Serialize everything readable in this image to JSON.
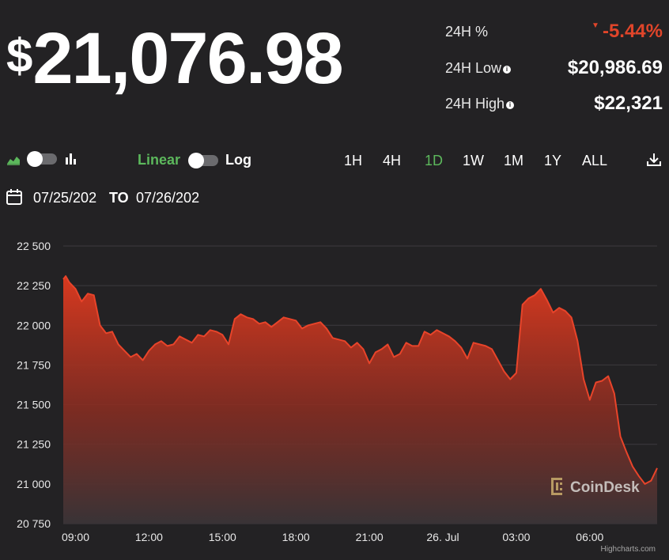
{
  "price": {
    "currency": "$",
    "value": "21,076.98"
  },
  "stats": [
    {
      "label": "24H %",
      "value": "-5.44%",
      "arrow": "▼",
      "info": false,
      "color": "#e0452a"
    },
    {
      "label": "24H Low",
      "value": "$20,986.69",
      "info": true,
      "color": "#ffffff"
    },
    {
      "label": "24H High",
      "value": "$22,321",
      "info": true,
      "color": "#ffffff"
    }
  ],
  "controls": {
    "scale_linear": "Linear",
    "scale_log": "Log",
    "ranges": [
      "1H",
      "4H",
      "1D",
      "1W",
      "1M",
      "1Y",
      "ALL"
    ],
    "active_range": "1D",
    "active_color": "#5cb85c"
  },
  "date_range": {
    "from": "07/25/202",
    "to_label": "TO",
    "to": "07/26/202"
  },
  "watermark": "CoinDesk",
  "credits": "Highcharts.com",
  "colors": {
    "line": "#e8442a",
    "background": "#232224",
    "grid": "#3c3b3e"
  },
  "chart_data": {
    "type": "area",
    "title": "",
    "xlabel": "",
    "ylabel": "",
    "ylim": [
      20750,
      22500
    ],
    "yticks": [
      20750,
      21000,
      21250,
      21500,
      21750,
      22000,
      22250,
      22500
    ],
    "ytick_labels": [
      "20 750",
      "21 000",
      "21 250",
      "21 500",
      "21 750",
      "22 000",
      "22 250",
      "22 500"
    ],
    "xlim": [
      8.5,
      32.75
    ],
    "xticks": [
      9,
      12,
      15,
      18,
      21,
      24,
      27,
      30
    ],
    "xtick_labels": [
      "09:00",
      "12:00",
      "15:00",
      "18:00",
      "21:00",
      "26. Jul",
      "03:00",
      "06:00"
    ],
    "grid": true,
    "x_units": "hours from 07/25 00:00",
    "series": [
      {
        "x": [
          8.5,
          8.6,
          8.75,
          9.0,
          9.25,
          9.5,
          9.75,
          10.0,
          10.25,
          10.5,
          10.75,
          11.0,
          11.25,
          11.5,
          11.75,
          12.0,
          12.25,
          12.5,
          12.75,
          13.0,
          13.25,
          13.5,
          13.75,
          14.0,
          14.25,
          14.5,
          14.75,
          15.0,
          15.25,
          15.5,
          15.75,
          16.0,
          16.25,
          16.5,
          16.75,
          17.0,
          17.25,
          17.5,
          17.75,
          18.0,
          18.25,
          18.5,
          18.75,
          19.0,
          19.25,
          19.5,
          19.75,
          20.0,
          20.25,
          20.5,
          20.75,
          21.0,
          21.25,
          21.5,
          21.75,
          22.0,
          22.25,
          22.5,
          22.75,
          23.0,
          23.25,
          23.5,
          23.75,
          24.0,
          24.25,
          24.5,
          24.75,
          25.0,
          25.25,
          25.5,
          25.75,
          26.0,
          26.25,
          26.5,
          26.75,
          27.0,
          27.25,
          27.5,
          27.75,
          28.0,
          28.25,
          28.5,
          28.75,
          29.0,
          29.25,
          29.5,
          29.75,
          30.0,
          30.25,
          30.5,
          30.75,
          31.0,
          31.25,
          31.5,
          31.75,
          32.0,
          32.25,
          32.5,
          32.75
        ],
        "values": [
          22290,
          22310,
          22270,
          22230,
          22150,
          22200,
          22190,
          22000,
          21950,
          21960,
          21880,
          21840,
          21800,
          21820,
          21780,
          21840,
          21880,
          21900,
          21870,
          21880,
          21930,
          21910,
          21890,
          21940,
          21930,
          21970,
          21960,
          21940,
          21880,
          22040,
          22070,
          22050,
          22040,
          22010,
          22020,
          21990,
          22020,
          22050,
          22040,
          22030,
          21980,
          22000,
          22010,
          22020,
          21980,
          21920,
          21910,
          21900,
          21860,
          21890,
          21850,
          21760,
          21830,
          21850,
          21880,
          21800,
          21820,
          21890,
          21870,
          21870,
          21960,
          21940,
          21970,
          21950,
          21930,
          21900,
          21860,
          21790,
          21890,
          21880,
          21870,
          21850,
          21780,
          21710,
          21660,
          21700,
          22130,
          22170,
          22190,
          22230,
          22160,
          22080,
          22110,
          22090,
          22050,
          21900,
          21660,
          21530,
          21640,
          21650,
          21680,
          21570,
          21300,
          21200,
          21110,
          21050,
          21000,
          21020,
          21100
        ]
      }
    ]
  }
}
